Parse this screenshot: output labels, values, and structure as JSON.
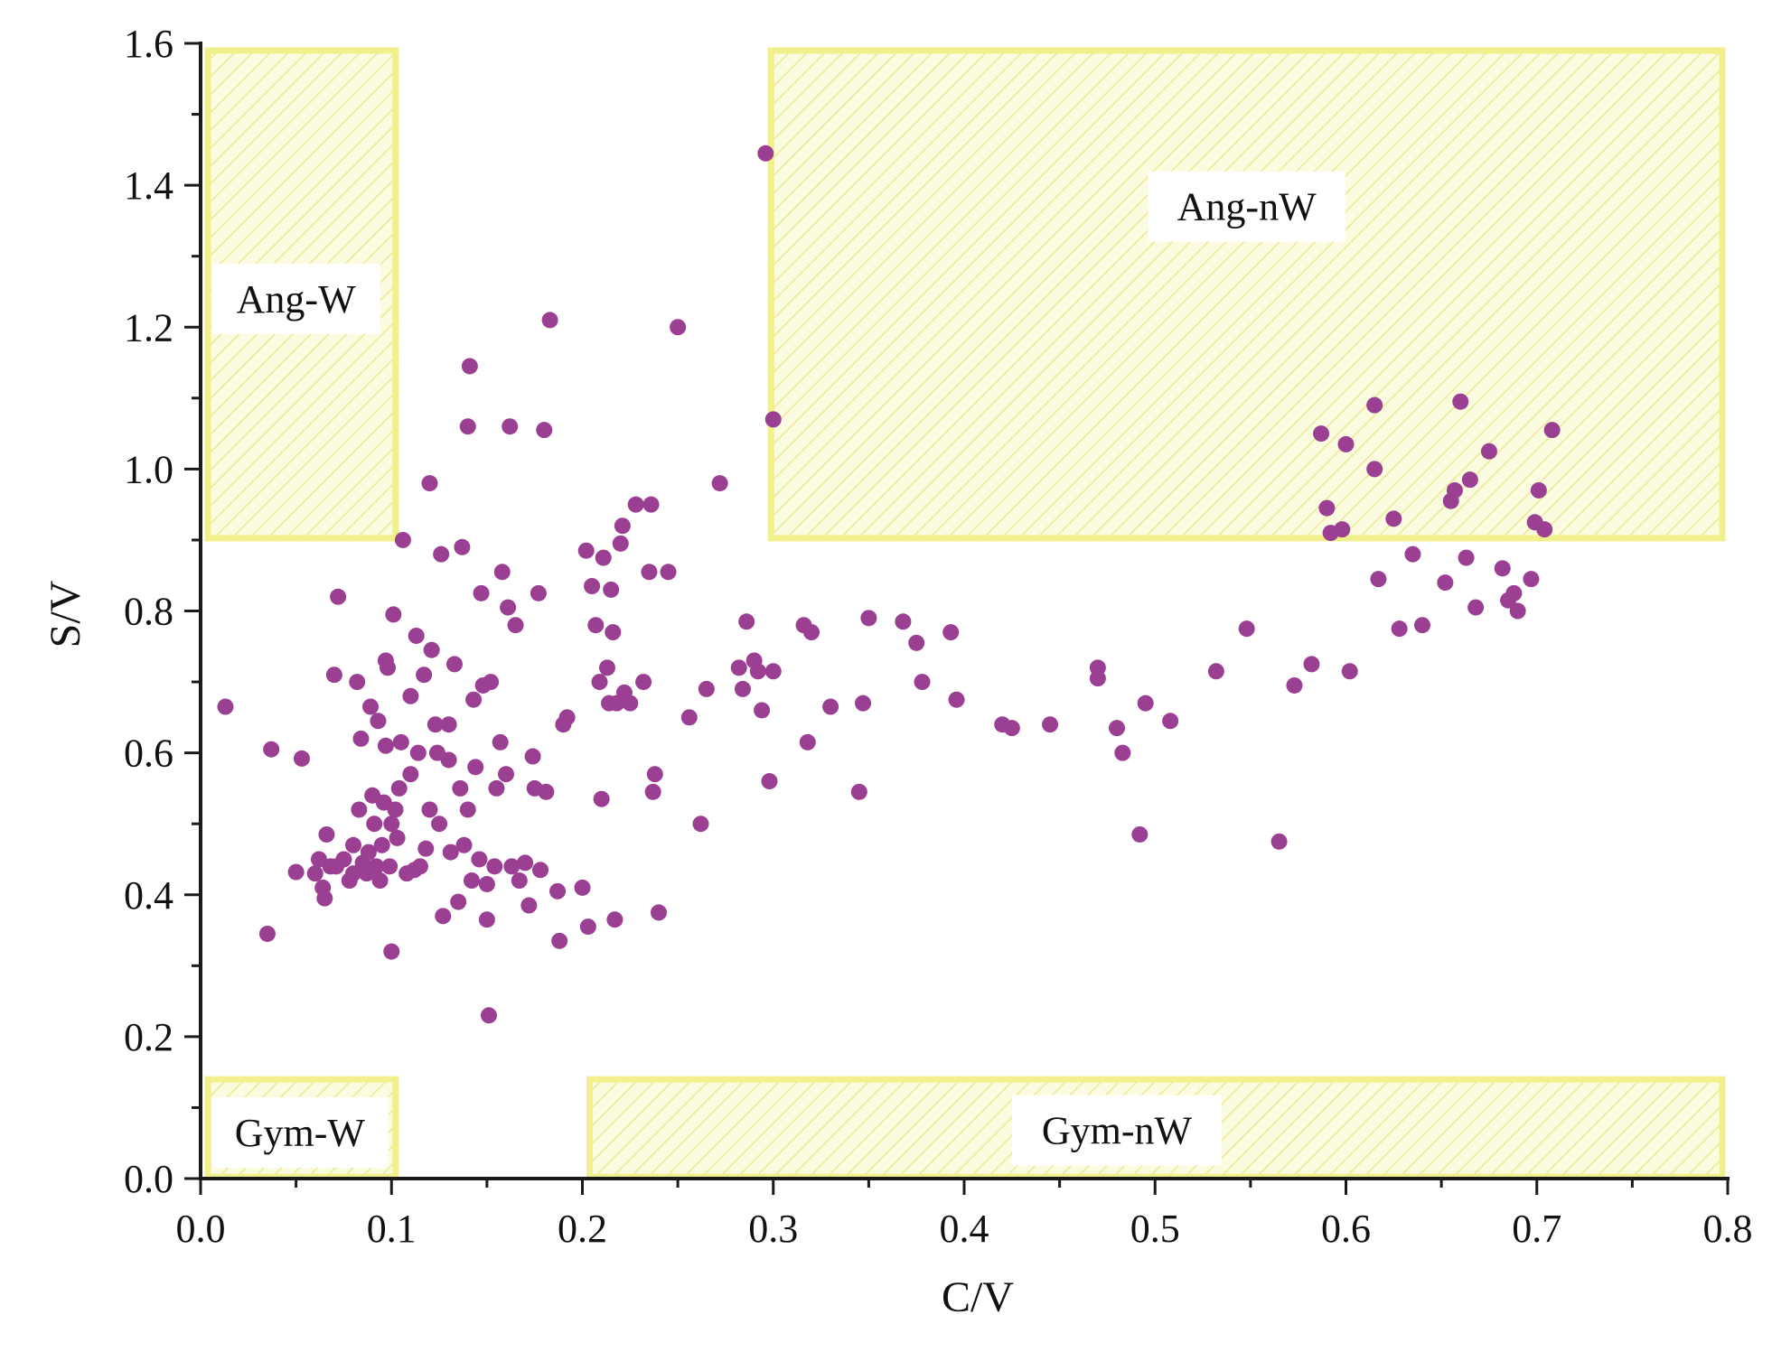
{
  "chart_data": {
    "type": "scatter",
    "xlabel": "C/V",
    "ylabel": "S/V",
    "xlim": [
      0.0,
      0.8
    ],
    "ylim": [
      0.0,
      1.6
    ],
    "xticks": [
      "0.0",
      "0.1",
      "0.2",
      "0.3",
      "0.4",
      "0.5",
      "0.6",
      "0.7",
      "0.8"
    ],
    "yticks": [
      "0.0",
      "0.2",
      "0.4",
      "0.6",
      "0.8",
      "1.0",
      "1.2",
      "1.4",
      "1.6"
    ],
    "grid": false,
    "colors": {
      "point": "#9b3f93",
      "region_fill": "#fbfbe0",
      "region_border": "#f2f08c",
      "hatch": "#ecea96",
      "axis": "#1a1a1a"
    },
    "regions": [
      {
        "label": "Ang-W",
        "x0": 0.0,
        "x1": 0.105,
        "y0": 0.9,
        "y1": 1.6
      },
      {
        "label": "Ang-nW",
        "x0": 0.295,
        "x1": 0.8,
        "y0": 0.9,
        "y1": 1.6
      },
      {
        "label": "Gym-W",
        "x0": 0.0,
        "x1": 0.105,
        "y0": 0.0,
        "y1": 0.15
      },
      {
        "label": "Gym-nW",
        "x0": 0.2,
        "x1": 0.8,
        "y0": 0.0,
        "y1": 0.15
      }
    ],
    "points": [
      [
        0.013,
        0.665
      ],
      [
        0.035,
        0.345
      ],
      [
        0.037,
        0.605
      ],
      [
        0.05,
        0.432
      ],
      [
        0.053,
        0.592
      ],
      [
        0.06,
        0.43
      ],
      [
        0.062,
        0.45
      ],
      [
        0.064,
        0.41
      ],
      [
        0.065,
        0.395
      ],
      [
        0.066,
        0.485
      ],
      [
        0.068,
        0.44
      ],
      [
        0.07,
        0.71
      ],
      [
        0.071,
        0.44
      ],
      [
        0.072,
        0.82
      ],
      [
        0.075,
        0.45
      ],
      [
        0.078,
        0.42
      ],
      [
        0.08,
        0.47
      ],
      [
        0.08,
        0.43
      ],
      [
        0.082,
        0.7
      ],
      [
        0.083,
        0.52
      ],
      [
        0.084,
        0.62
      ],
      [
        0.085,
        0.445
      ],
      [
        0.087,
        0.43
      ],
      [
        0.088,
        0.46
      ],
      [
        0.089,
        0.665
      ],
      [
        0.09,
        0.54
      ],
      [
        0.091,
        0.5
      ],
      [
        0.092,
        0.44
      ],
      [
        0.093,
        0.645
      ],
      [
        0.094,
        0.42
      ],
      [
        0.095,
        0.47
      ],
      [
        0.096,
        0.53
      ],
      [
        0.097,
        0.61
      ],
      [
        0.097,
        0.73
      ],
      [
        0.098,
        0.72
      ],
      [
        0.099,
        0.44
      ],
      [
        0.1,
        0.5
      ],
      [
        0.1,
        0.32
      ],
      [
        0.101,
        0.795
      ],
      [
        0.102,
        0.52
      ],
      [
        0.103,
        0.48
      ],
      [
        0.104,
        0.55
      ],
      [
        0.105,
        0.615
      ],
      [
        0.106,
        0.9
      ],
      [
        0.108,
        0.43
      ],
      [
        0.11,
        0.57
      ],
      [
        0.11,
        0.68
      ],
      [
        0.112,
        0.435
      ],
      [
        0.113,
        0.765
      ],
      [
        0.114,
        0.6
      ],
      [
        0.115,
        0.44
      ],
      [
        0.117,
        0.71
      ],
      [
        0.118,
        0.465
      ],
      [
        0.12,
        0.52
      ],
      [
        0.12,
        0.98
      ],
      [
        0.121,
        0.745
      ],
      [
        0.123,
        0.64
      ],
      [
        0.124,
        0.6
      ],
      [
        0.125,
        0.5
      ],
      [
        0.126,
        0.88
      ],
      [
        0.127,
        0.37
      ],
      [
        0.13,
        0.64
      ],
      [
        0.13,
        0.59
      ],
      [
        0.131,
        0.46
      ],
      [
        0.133,
        0.725
      ],
      [
        0.135,
        0.39
      ],
      [
        0.136,
        0.55
      ],
      [
        0.137,
        0.89
      ],
      [
        0.138,
        0.47
      ],
      [
        0.14,
        1.06
      ],
      [
        0.14,
        0.52
      ],
      [
        0.141,
        1.145
      ],
      [
        0.142,
        0.42
      ],
      [
        0.143,
        0.675
      ],
      [
        0.144,
        0.58
      ],
      [
        0.146,
        0.45
      ],
      [
        0.147,
        0.825
      ],
      [
        0.148,
        0.695
      ],
      [
        0.15,
        0.415
      ],
      [
        0.15,
        0.365
      ],
      [
        0.151,
        0.23
      ],
      [
        0.152,
        0.7
      ],
      [
        0.154,
        0.44
      ],
      [
        0.155,
        0.55
      ],
      [
        0.157,
        0.615
      ],
      [
        0.158,
        0.855
      ],
      [
        0.16,
        0.57
      ],
      [
        0.161,
        0.805
      ],
      [
        0.162,
        1.06
      ],
      [
        0.163,
        0.44
      ],
      [
        0.165,
        0.78
      ],
      [
        0.167,
        0.42
      ],
      [
        0.17,
        0.445
      ],
      [
        0.172,
        0.385
      ],
      [
        0.174,
        0.595
      ],
      [
        0.175,
        0.55
      ],
      [
        0.177,
        0.825
      ],
      [
        0.178,
        0.435
      ],
      [
        0.18,
        1.055
      ],
      [
        0.181,
        0.545
      ],
      [
        0.183,
        1.21
      ],
      [
        0.187,
        0.405
      ],
      [
        0.188,
        0.335
      ],
      [
        0.19,
        0.64
      ],
      [
        0.192,
        0.65
      ],
      [
        0.2,
        0.41
      ],
      [
        0.202,
        0.885
      ],
      [
        0.203,
        0.355
      ],
      [
        0.205,
        0.835
      ],
      [
        0.207,
        0.78
      ],
      [
        0.209,
        0.7
      ],
      [
        0.21,
        0.535
      ],
      [
        0.211,
        0.875
      ],
      [
        0.213,
        0.72
      ],
      [
        0.214,
        0.67
      ],
      [
        0.215,
        0.83
      ],
      [
        0.216,
        0.77
      ],
      [
        0.217,
        0.365
      ],
      [
        0.218,
        0.67
      ],
      [
        0.22,
        0.895
      ],
      [
        0.221,
        0.92
      ],
      [
        0.222,
        0.685
      ],
      [
        0.225,
        0.67
      ],
      [
        0.228,
        0.95
      ],
      [
        0.232,
        0.7
      ],
      [
        0.235,
        0.855
      ],
      [
        0.236,
        0.95
      ],
      [
        0.237,
        0.545
      ],
      [
        0.238,
        0.57
      ],
      [
        0.24,
        0.375
      ],
      [
        0.245,
        0.855
      ],
      [
        0.25,
        1.2
      ],
      [
        0.256,
        0.65
      ],
      [
        0.262,
        0.5
      ],
      [
        0.265,
        0.69
      ],
      [
        0.272,
        0.98
      ],
      [
        0.282,
        0.72
      ],
      [
        0.284,
        0.69
      ],
      [
        0.286,
        0.785
      ],
      [
        0.29,
        0.73
      ],
      [
        0.292,
        0.715
      ],
      [
        0.294,
        0.66
      ],
      [
        0.296,
        1.445
      ],
      [
        0.298,
        0.56
      ],
      [
        0.3,
        1.07
      ],
      [
        0.3,
        0.715
      ],
      [
        0.316,
        0.78
      ],
      [
        0.318,
        0.615
      ],
      [
        0.32,
        0.77
      ],
      [
        0.33,
        0.665
      ],
      [
        0.345,
        0.545
      ],
      [
        0.347,
        0.67
      ],
      [
        0.35,
        0.79
      ],
      [
        0.368,
        0.785
      ],
      [
        0.375,
        0.755
      ],
      [
        0.378,
        0.7
      ],
      [
        0.393,
        0.77
      ],
      [
        0.396,
        0.675
      ],
      [
        0.42,
        0.64
      ],
      [
        0.425,
        0.635
      ],
      [
        0.445,
        0.64
      ],
      [
        0.47,
        0.72
      ],
      [
        0.47,
        0.705
      ],
      [
        0.48,
        0.635
      ],
      [
        0.483,
        0.6
      ],
      [
        0.492,
        0.485
      ],
      [
        0.495,
        0.67
      ],
      [
        0.508,
        0.645
      ],
      [
        0.532,
        0.715
      ],
      [
        0.548,
        0.775
      ],
      [
        0.565,
        0.475
      ],
      [
        0.573,
        0.695
      ],
      [
        0.582,
        0.725
      ],
      [
        0.587,
        1.05
      ],
      [
        0.59,
        0.945
      ],
      [
        0.592,
        0.91
      ],
      [
        0.598,
        0.915
      ],
      [
        0.6,
        1.035
      ],
      [
        0.602,
        0.715
      ],
      [
        0.615,
        1.09
      ],
      [
        0.615,
        1.0
      ],
      [
        0.617,
        0.845
      ],
      [
        0.625,
        0.93
      ],
      [
        0.628,
        0.775
      ],
      [
        0.635,
        0.88
      ],
      [
        0.64,
        0.78
      ],
      [
        0.652,
        0.84
      ],
      [
        0.655,
        0.955
      ],
      [
        0.657,
        0.97
      ],
      [
        0.66,
        1.095
      ],
      [
        0.663,
        0.875
      ],
      [
        0.665,
        0.985
      ],
      [
        0.668,
        0.805
      ],
      [
        0.675,
        1.025
      ],
      [
        0.682,
        0.86
      ],
      [
        0.685,
        0.815
      ],
      [
        0.688,
        0.825
      ],
      [
        0.69,
        0.8
      ],
      [
        0.697,
        0.845
      ],
      [
        0.699,
        0.925
      ],
      [
        0.701,
        0.97
      ],
      [
        0.704,
        0.915
      ],
      [
        0.708,
        1.055
      ]
    ]
  }
}
